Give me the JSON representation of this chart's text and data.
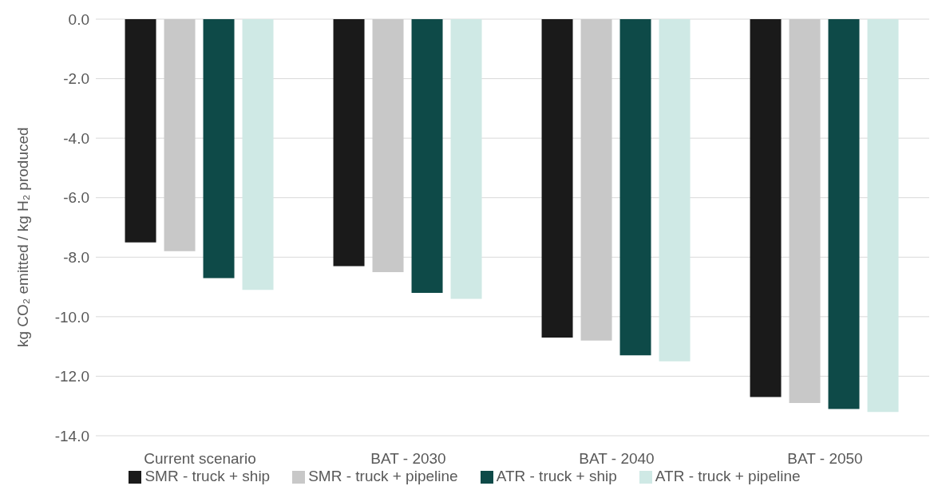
{
  "chart_data": {
    "type": "bar",
    "ylabel": "kg CO₂ emitted / kg H₂ produced",
    "categories": [
      "Current scenario",
      "BAT - 2030",
      "BAT - 2040",
      "BAT - 2050"
    ],
    "series": [
      {
        "name": "SMR - truck + ship",
        "color": "#1a1a1a",
        "values": [
          -7.5,
          -8.3,
          -10.7,
          -12.7
        ]
      },
      {
        "name": "SMR - truck + pipeline",
        "color": "#c8c8c8",
        "values": [
          -7.8,
          -8.5,
          -10.8,
          -12.9
        ]
      },
      {
        "name": "ATR - truck + ship",
        "color": "#0e4a48",
        "values": [
          -8.7,
          -9.2,
          -11.3,
          -13.1
        ]
      },
      {
        "name": "ATR - truck + pipeline",
        "color": "#cfe9e5",
        "values": [
          -9.1,
          -9.4,
          -11.5,
          -13.2
        ]
      }
    ],
    "ylim": [
      -14,
      0
    ],
    "yticks": [
      {
        "value": -14,
        "label": "-14.0"
      },
      {
        "value": -12,
        "label": "-12.0"
      },
      {
        "value": -10,
        "label": "-10.0"
      },
      {
        "value": -8,
        "label": "-8.0"
      },
      {
        "value": -6,
        "label": "-6.0"
      },
      {
        "value": -4,
        "label": "-4.0"
      },
      {
        "value": -2,
        "label": "-2.0"
      },
      {
        "value": 0,
        "label": "0.0"
      }
    ],
    "grid": "y",
    "legend": "bottom"
  }
}
